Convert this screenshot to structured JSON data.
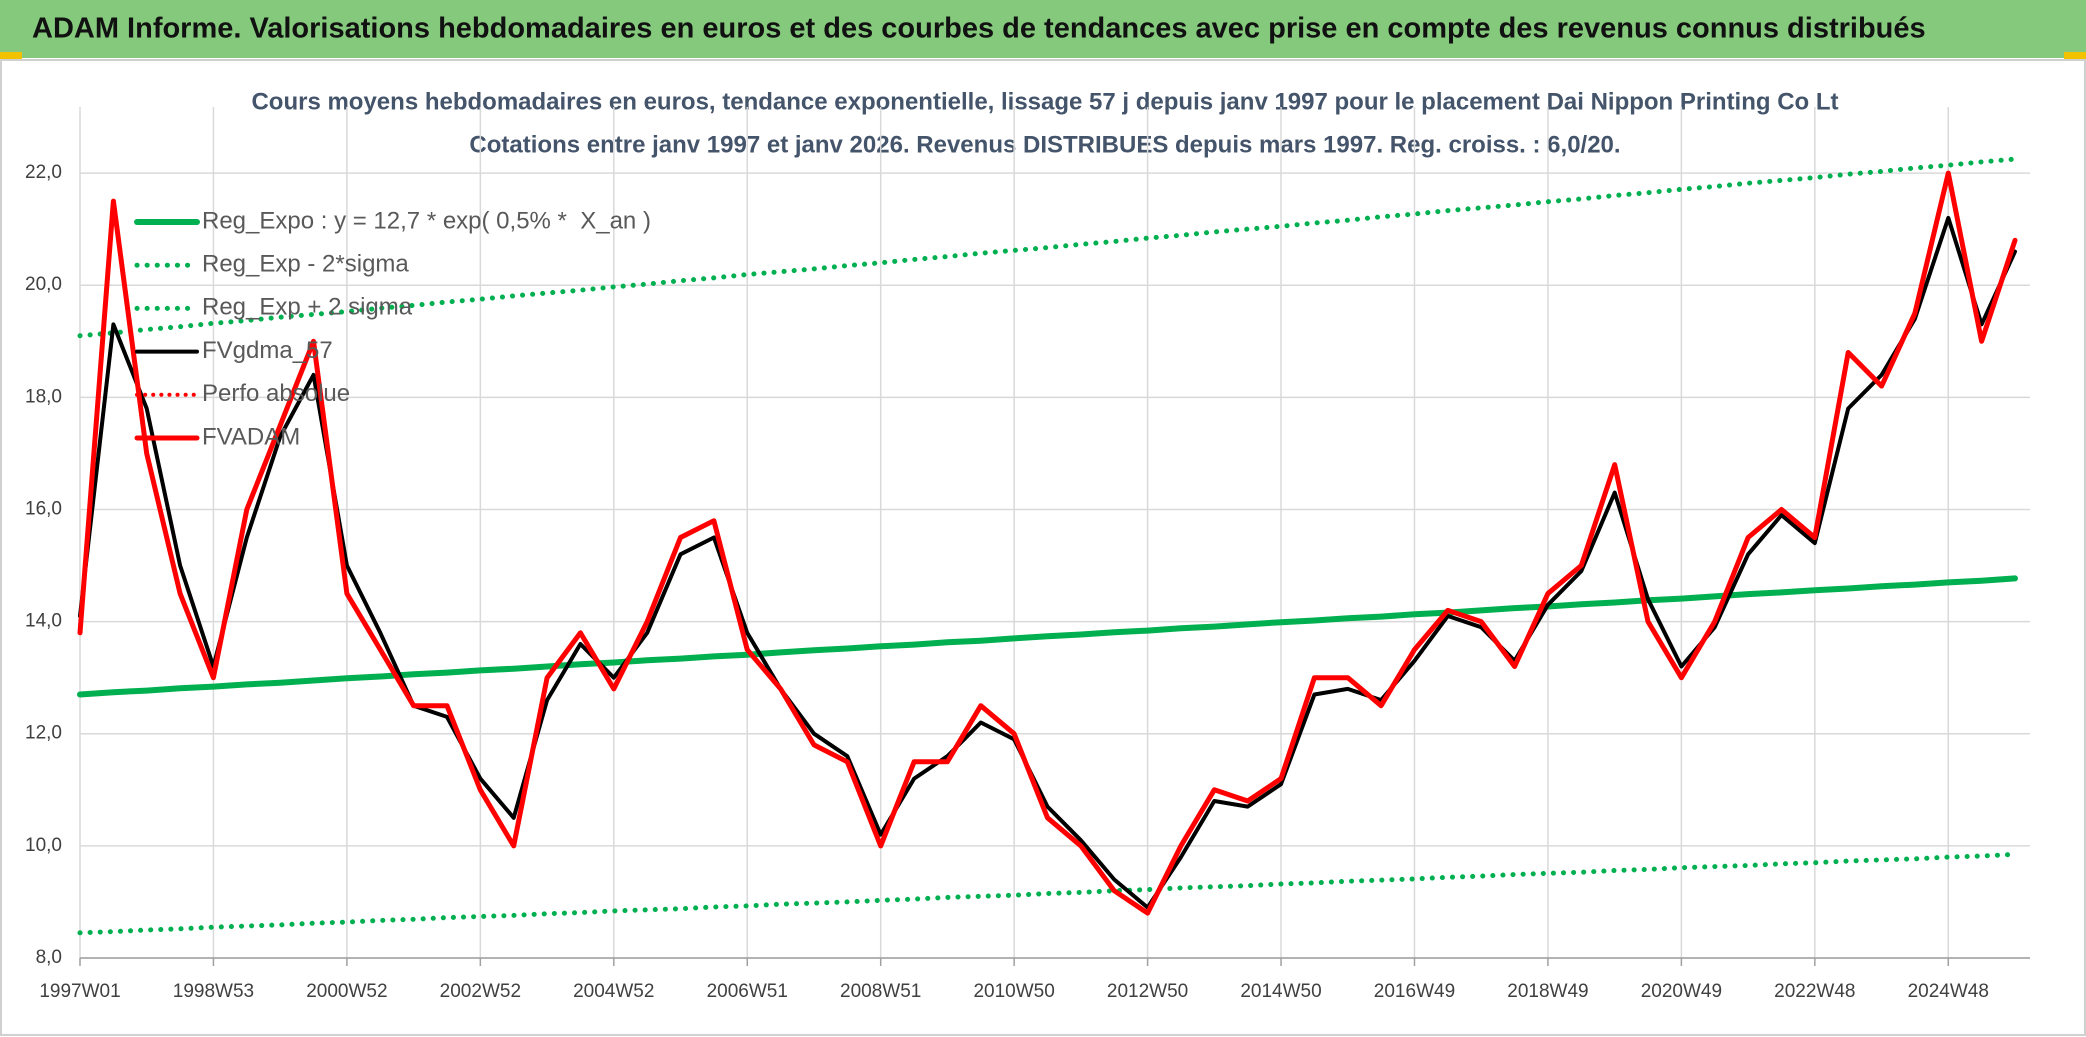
{
  "header": {
    "title": "ADAM Informe. Valorisations hebdomadaires en euros et des courbes de tendances avec prise en compte des revenus connus distribués"
  },
  "chart_data": {
    "type": "line",
    "title": "Cours moyens hebdomadaires en euros, tendance exponentielle, lissage 57 j depuis janv 1997 pour le placement Dai Nippon Printing Co Lt",
    "subtitle": "Cotations entre janv 1997 et janv 2026. Revenus DISTRIBUES depuis mars 1997. Reg. croiss. : 6,0/20.",
    "categories": [
      "1997W01",
      null,
      null,
      null,
      "1998W53",
      null,
      null,
      null,
      "2000W52",
      null,
      null,
      null,
      "2002W52",
      null,
      null,
      null,
      "2004W52",
      null,
      null,
      null,
      "2006W51",
      null,
      null,
      null,
      "2008W51",
      null,
      null,
      null,
      "2010W50",
      null,
      null,
      null,
      "2012W50",
      null,
      null,
      null,
      "2014W50",
      null,
      null,
      null,
      "2016W49",
      null,
      null,
      null,
      "2018W49",
      null,
      null,
      null,
      "2020W49",
      null,
      null,
      null,
      "2022W48",
      null,
      null,
      null,
      "2024W48",
      null,
      null
    ],
    "ylim": [
      8,
      23
    ],
    "yticks": [
      {
        "value": 8,
        "label": "8,0"
      },
      {
        "value": 10,
        "label": "10,0"
      },
      {
        "value": 12,
        "label": "12,0"
      },
      {
        "value": 14,
        "label": "14,0"
      },
      {
        "value": 16,
        "label": "16,0"
      },
      {
        "value": 18,
        "label": "18,0"
      },
      {
        "value": 20,
        "label": "20,0"
      },
      {
        "value": 22,
        "label": "22,0"
      }
    ],
    "grid": true,
    "legend": "upper-left",
    "series": [
      {
        "name": "Reg_Expo : y = 12,7 * exp( 0,5% *  X_an )",
        "color": "#00b050",
        "style": "solid",
        "width": 6,
        "values": [
          12.7,
          12.74,
          12.77,
          12.81,
          12.84,
          12.88,
          12.91,
          12.95,
          12.99,
          13.02,
          13.06,
          13.09,
          13.13,
          13.16,
          13.2,
          13.24,
          13.27,
          13.31,
          13.34,
          13.38,
          13.41,
          13.45,
          13.49,
          13.52,
          13.56,
          13.59,
          13.63,
          13.66,
          13.7,
          13.74,
          13.77,
          13.81,
          13.84,
          13.88,
          13.91,
          13.95,
          13.99,
          14.02,
          14.06,
          14.09,
          14.13,
          14.16,
          14.2,
          14.24,
          14.27,
          14.31,
          14.34,
          14.38,
          14.41,
          14.45,
          14.49,
          14.52,
          14.56,
          14.59,
          14.63,
          14.66,
          14.7,
          14.73,
          14.77
        ]
      },
      {
        "name": "Reg_Exp - 2*sigma",
        "color": "#00b050",
        "style": "dotted",
        "width": 5,
        "values": [
          8.45,
          8.47,
          8.5,
          8.52,
          8.55,
          8.57,
          8.59,
          8.62,
          8.64,
          8.67,
          8.69,
          8.72,
          8.74,
          8.76,
          8.79,
          8.81,
          8.84,
          8.86,
          8.88,
          8.91,
          8.93,
          8.96,
          8.98,
          9.0,
          9.03,
          9.05,
          9.08,
          9.1,
          9.12,
          9.15,
          9.17,
          9.2,
          9.22,
          9.25,
          9.27,
          9.29,
          9.32,
          9.34,
          9.37,
          9.39,
          9.41,
          9.44,
          9.46,
          9.49,
          9.51,
          9.53,
          9.56,
          9.58,
          9.61,
          9.63,
          9.65,
          9.68,
          9.7,
          9.73,
          9.75,
          9.77,
          9.8,
          9.82,
          9.85
        ]
      },
      {
        "name": "Reg_Exp + 2 sigma",
        "color": "#00b050",
        "style": "dotted",
        "width": 5,
        "values": [
          19.1,
          19.15,
          19.21,
          19.26,
          19.32,
          19.37,
          19.43,
          19.48,
          19.53,
          19.59,
          19.64,
          19.7,
          19.75,
          19.81,
          19.86,
          19.91,
          19.97,
          20.02,
          20.08,
          20.13,
          20.19,
          20.24,
          20.29,
          20.35,
          20.4,
          20.46,
          20.51,
          20.57,
          20.62,
          20.67,
          20.73,
          20.78,
          20.84,
          20.89,
          20.95,
          21.0,
          21.05,
          21.11,
          21.16,
          21.22,
          21.27,
          21.33,
          21.38,
          21.43,
          21.49,
          21.54,
          21.6,
          21.65,
          21.71,
          21.76,
          21.82,
          21.87,
          21.92,
          21.98,
          22.03,
          22.09,
          22.14,
          22.2,
          22.25
        ]
      },
      {
        "name": "FVgdma_57",
        "color": "#000000",
        "style": "solid",
        "width": 4,
        "values": [
          14.1,
          19.3,
          17.8,
          15.0,
          13.2,
          15.5,
          17.3,
          18.4,
          15.0,
          13.8,
          12.5,
          12.3,
          11.2,
          10.5,
          12.6,
          13.6,
          13.0,
          13.8,
          15.2,
          15.5,
          13.8,
          12.8,
          12.0,
          11.6,
          10.2,
          11.2,
          11.6,
          12.2,
          11.9,
          10.7,
          10.1,
          9.4,
          8.9,
          9.8,
          10.8,
          10.7,
          11.1,
          12.7,
          12.8,
          12.6,
          13.3,
          14.1,
          13.9,
          13.3,
          14.3,
          14.9,
          16.3,
          14.4,
          13.2,
          13.9,
          15.2,
          15.9,
          15.4,
          17.8,
          18.4,
          19.4,
          21.2,
          19.3,
          20.6
        ]
      },
      {
        "name": "Perfo absolue",
        "color": "#ff0000",
        "style": "dotted",
        "width": 4,
        "values": [
          null,
          null,
          null,
          null,
          null,
          null,
          null,
          null,
          null,
          null,
          null,
          null,
          null,
          null,
          null,
          null,
          null,
          null,
          null,
          null,
          null,
          null,
          null,
          null,
          null,
          null,
          null,
          null,
          null,
          null,
          null,
          null,
          null,
          null,
          null,
          null,
          null,
          null,
          null,
          null,
          null,
          null,
          null,
          null,
          null,
          null,
          null,
          null,
          null,
          null,
          null,
          null,
          null,
          null,
          null,
          null,
          null,
          null,
          null
        ]
      },
      {
        "name": "FVADAM",
        "color": "#ff0000",
        "style": "solid",
        "width": 5,
        "values": [
          13.8,
          21.5,
          17.0,
          14.5,
          13.0,
          16.0,
          17.5,
          19.0,
          14.5,
          13.5,
          12.5,
          12.5,
          11.0,
          10.0,
          13.0,
          13.8,
          12.8,
          14.0,
          15.5,
          15.8,
          13.5,
          12.8,
          11.8,
          11.5,
          10.0,
          11.5,
          11.5,
          12.5,
          12.0,
          10.5,
          10.0,
          9.2,
          8.8,
          10.0,
          11.0,
          10.8,
          11.2,
          13.0,
          13.0,
          12.5,
          13.5,
          14.2,
          14.0,
          13.2,
          14.5,
          15.0,
          16.8,
          14.0,
          13.0,
          14.0,
          15.5,
          16.0,
          15.5,
          18.8,
          18.2,
          19.5,
          22.0,
          19.0,
          20.8
        ]
      }
    ]
  }
}
